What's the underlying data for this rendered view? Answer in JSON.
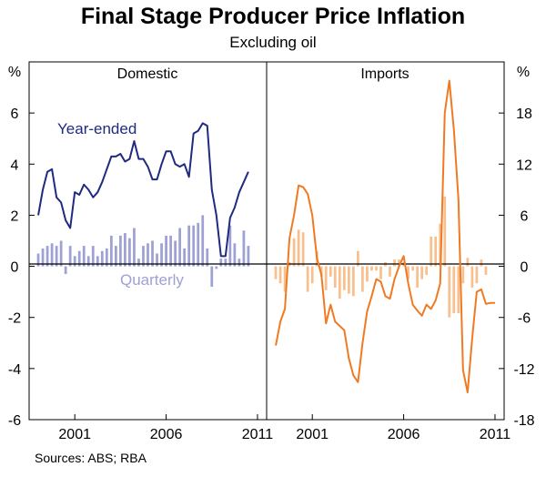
{
  "title": "Final Stage Producer Price Inflation",
  "subtitle": "Excluding oil",
  "source": "Sources: ABS; RBA",
  "chart_data": [
    {
      "type": "line+bar",
      "panel": "Domestic",
      "y_axis_side": "left",
      "y_unit_label": "%",
      "ylim": [
        -6,
        8
      ],
      "yticks": [
        -6,
        -4,
        -2,
        0,
        2,
        4,
        6
      ],
      "xlim": [
        1998.5,
        2011.5
      ],
      "xticks": [
        2001,
        2006,
        2011
      ],
      "series": [
        {
          "name": "Year-ended",
          "kind": "line",
          "color": "#1f2a80",
          "x": [
            1999.0,
            1999.25,
            1999.5,
            1999.75,
            2000.0,
            2000.25,
            2000.5,
            2000.75,
            2001.0,
            2001.25,
            2001.5,
            2001.75,
            2002.0,
            2002.25,
            2002.5,
            2002.75,
            2003.0,
            2003.25,
            2003.5,
            2003.75,
            2004.0,
            2004.25,
            2004.5,
            2004.75,
            2005.0,
            2005.25,
            2005.5,
            2005.75,
            2006.0,
            2006.25,
            2006.5,
            2006.75,
            2007.0,
            2007.25,
            2007.5,
            2007.75,
            2008.0,
            2008.25,
            2008.5,
            2008.75,
            2009.0,
            2009.25,
            2009.5,
            2009.75,
            2010.0,
            2010.25,
            2010.5
          ],
          "values": [
            2.0,
            3.0,
            3.7,
            3.8,
            2.7,
            2.5,
            1.8,
            1.5,
            2.9,
            2.8,
            3.2,
            3.0,
            2.7,
            2.9,
            3.3,
            3.8,
            4.3,
            4.3,
            4.4,
            4.1,
            4.2,
            4.9,
            4.2,
            4.2,
            3.9,
            3.4,
            3.4,
            4.0,
            4.5,
            4.5,
            4.0,
            3.9,
            4.0,
            3.5,
            5.2,
            5.3,
            5.6,
            5.5,
            3.0,
            2.0,
            0.4,
            0.4,
            1.9,
            2.3,
            2.9,
            3.3,
            3.7
          ]
        },
        {
          "name": "Quarterly",
          "kind": "bar",
          "color": "#9ea1d4",
          "x": [
            1999.0,
            1999.25,
            1999.5,
            1999.75,
            2000.0,
            2000.25,
            2000.5,
            2000.75,
            2001.0,
            2001.25,
            2001.5,
            2001.75,
            2002.0,
            2002.25,
            2002.5,
            2002.75,
            2003.0,
            2003.25,
            2003.5,
            2003.75,
            2004.0,
            2004.25,
            2004.5,
            2004.75,
            2005.0,
            2005.25,
            2005.5,
            2005.75,
            2006.0,
            2006.25,
            2006.5,
            2006.75,
            2007.0,
            2007.25,
            2007.5,
            2007.75,
            2008.0,
            2008.25,
            2008.5,
            2008.75,
            2009.0,
            2009.25,
            2009.5,
            2009.75,
            2010.0,
            2010.25,
            2010.5
          ],
          "values": [
            0.5,
            0.7,
            0.8,
            0.9,
            0.8,
            1.0,
            -0.3,
            0.8,
            0.4,
            0.6,
            0.8,
            0.4,
            0.8,
            0.4,
            0.6,
            0.7,
            1.2,
            0.8,
            1.2,
            1.3,
            1.1,
            1.5,
            0.3,
            0.8,
            0.9,
            1.0,
            0.5,
            0.9,
            1.2,
            1.2,
            1.0,
            1.5,
            0.7,
            1.6,
            1.6,
            1.7,
            2.0,
            0.7,
            -0.8,
            -0.1,
            0.3,
            0.3,
            1.6,
            0.9,
            0.3,
            1.4,
            0.8
          ]
        }
      ],
      "annotations": [
        {
          "text": "Year-ended",
          "color": "#1f2a80"
        },
        {
          "text": "Quarterly",
          "color": "#9ea1d4"
        }
      ]
    },
    {
      "type": "line+bar",
      "panel": "Imports",
      "y_axis_side": "right",
      "y_unit_label": "%",
      "ylim": [
        -18,
        24
      ],
      "yticks": [
        -18,
        -12,
        -6,
        0,
        6,
        12,
        18
      ],
      "xlim": [
        1998.5,
        2011.5
      ],
      "xticks": [
        2001,
        2006,
        2011
      ],
      "series": [
        {
          "name": "Year-ended",
          "kind": "line",
          "color": "#f07a22",
          "x": [
            1999.0,
            1999.25,
            1999.5,
            1999.75,
            2000.0,
            2000.25,
            2000.5,
            2000.75,
            2001.0,
            2001.25,
            2001.5,
            2001.75,
            2002.0,
            2002.25,
            2002.5,
            2002.75,
            2003.0,
            2003.25,
            2003.5,
            2003.75,
            2004.0,
            2004.25,
            2004.5,
            2004.75,
            2005.0,
            2005.25,
            2005.5,
            2005.75,
            2006.0,
            2006.25,
            2006.5,
            2006.75,
            2007.0,
            2007.25,
            2007.5,
            2007.75,
            2008.0,
            2008.25,
            2008.5,
            2008.75,
            2009.0,
            2009.25,
            2009.5,
            2009.75,
            2010.0,
            2010.25,
            2010.5,
            2010.75,
            2011.0
          ],
          "values": [
            -9.3,
            -6.5,
            -5.0,
            3.3,
            6.0,
            9.5,
            9.3,
            8.5,
            6.0,
            1.0,
            -1.0,
            -6.7,
            -4.5,
            -6.5,
            -7.0,
            -7.5,
            -10.8,
            -12.8,
            -13.6,
            -9.0,
            -5.3,
            -3.5,
            -1.5,
            -1.8,
            -3.5,
            -3.8,
            -1.5,
            0.0,
            1.2,
            -2.0,
            -4.5,
            -5.2,
            -5.8,
            -4.5,
            -5.0,
            -4.0,
            -2.0,
            18.0,
            21.8,
            16.0,
            7.8,
            -12.2,
            -14.8,
            -8.5,
            -3.0,
            -2.7,
            -4.4,
            -4.3,
            -4.3
          ]
        },
        {
          "name": "Quarterly",
          "kind": "bar",
          "color": "#f9c08f",
          "x": [
            1999.0,
            1999.25,
            1999.5,
            1999.75,
            2000.0,
            2000.25,
            2000.5,
            2000.75,
            2001.0,
            2001.25,
            2001.5,
            2001.75,
            2002.0,
            2002.25,
            2002.5,
            2002.75,
            2003.0,
            2003.25,
            2003.5,
            2003.75,
            2004.0,
            2004.25,
            2004.5,
            2004.75,
            2005.0,
            2005.25,
            2005.5,
            2005.75,
            2006.0,
            2006.25,
            2006.5,
            2006.75,
            2007.0,
            2007.25,
            2007.5,
            2007.75,
            2008.0,
            2008.25,
            2008.5,
            2008.75,
            2009.0,
            2009.25,
            2009.5,
            2009.75,
            2010.0,
            2010.25,
            2010.5
          ],
          "values": [
            -1.5,
            -2.0,
            -3.0,
            0.5,
            3.3,
            4.3,
            4.0,
            -3.0,
            -2.0,
            1.8,
            -1.2,
            -2.8,
            -1.2,
            -2.5,
            -3.8,
            -2.8,
            -3.2,
            -3.5,
            1.8,
            -3.0,
            -1.8,
            -0.5,
            -0.5,
            -1.5,
            0.5,
            -1.2,
            0.8,
            0.8,
            0.5,
            -1.5,
            -0.5,
            -2.5,
            -1.5,
            -1.0,
            3.5,
            3.5,
            5.0,
            8.2,
            -6.0,
            -5.5,
            -5.5,
            -2.0,
            1.0,
            -2.5,
            -2.0,
            0.8,
            -1.0
          ]
        }
      ]
    }
  ]
}
